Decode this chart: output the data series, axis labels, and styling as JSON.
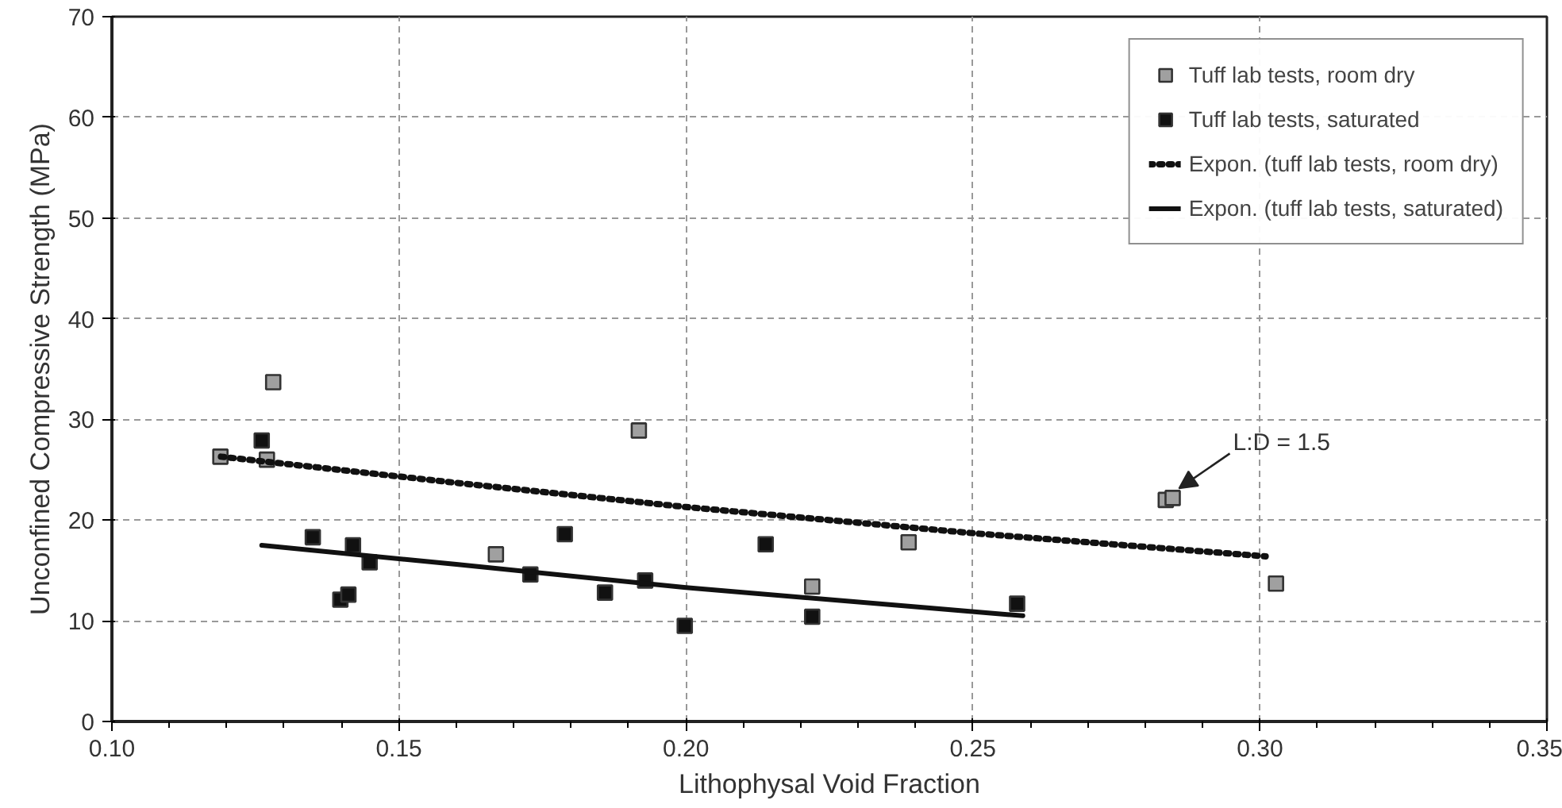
{
  "chart_data": {
    "type": "scatter",
    "xlabel": "Lithophysal Void Fraction",
    "ylabel": "Unconfined Compressive Strength (MPa)",
    "xlim": [
      0.1,
      0.35
    ],
    "ylim": [
      0,
      70
    ],
    "xticks": [
      {
        "value": 0.1,
        "label": "0.10"
      },
      {
        "value": 0.15,
        "label": "0.15"
      },
      {
        "value": 0.2,
        "label": "0.20"
      },
      {
        "value": 0.25,
        "label": "0.25"
      },
      {
        "value": 0.3,
        "label": "0.30"
      },
      {
        "value": 0.35,
        "label": "0.35"
      }
    ],
    "yticks": [
      0,
      10,
      20,
      30,
      40,
      50,
      60,
      70
    ],
    "grid": true,
    "legend": "top right",
    "series": [
      {
        "name": "Tuff lab tests, room dry",
        "marker": "square",
        "color": "#a0a0a0",
        "x": [
          0.1189,
          0.1281,
          0.127,
          0.1669,
          0.1918,
          0.2388,
          0.222,
          0.2836,
          0.2848,
          0.3028
        ],
        "values": [
          26.3,
          33.7,
          26.0,
          16.6,
          28.9,
          17.8,
          13.4,
          22.0,
          22.2,
          13.7
        ]
      },
      {
        "name": "Tuff lab tests, saturated",
        "marker": "square",
        "color": "#111111",
        "x": [
          0.1261,
          0.135,
          0.142,
          0.1449,
          0.1398,
          0.1412,
          0.1729,
          0.1789,
          0.1859,
          0.1929,
          0.1998,
          0.2139,
          0.222,
          0.2577
        ],
        "values": [
          27.9,
          18.3,
          17.5,
          15.8,
          12.1,
          12.6,
          14.6,
          18.6,
          12.8,
          14.0,
          9.5,
          17.6,
          10.4,
          11.7
        ]
      },
      {
        "name": "Expon. (tuff lab tests, room dry)",
        "type": "line",
        "marker": "none",
        "color": "#111111",
        "line_style": "dotted",
        "x": [
          0.119,
          0.16,
          0.2,
          0.25,
          0.301
        ],
        "values": [
          26.3,
          23.7,
          21.3,
          18.7,
          16.4
        ]
      },
      {
        "name": "Expon. (tuff lab tests, saturated)",
        "type": "line",
        "marker": "none",
        "color": "#111111",
        "line_style": "solid",
        "x": [
          0.1261,
          0.16,
          0.2,
          0.2587
        ],
        "values": [
          17.5,
          15.6,
          13.3,
          10.5
        ]
      }
    ],
    "annotations": [
      {
        "text": "L:D = 1.5",
        "x": 0.2848,
        "y": 22.2
      }
    ]
  }
}
